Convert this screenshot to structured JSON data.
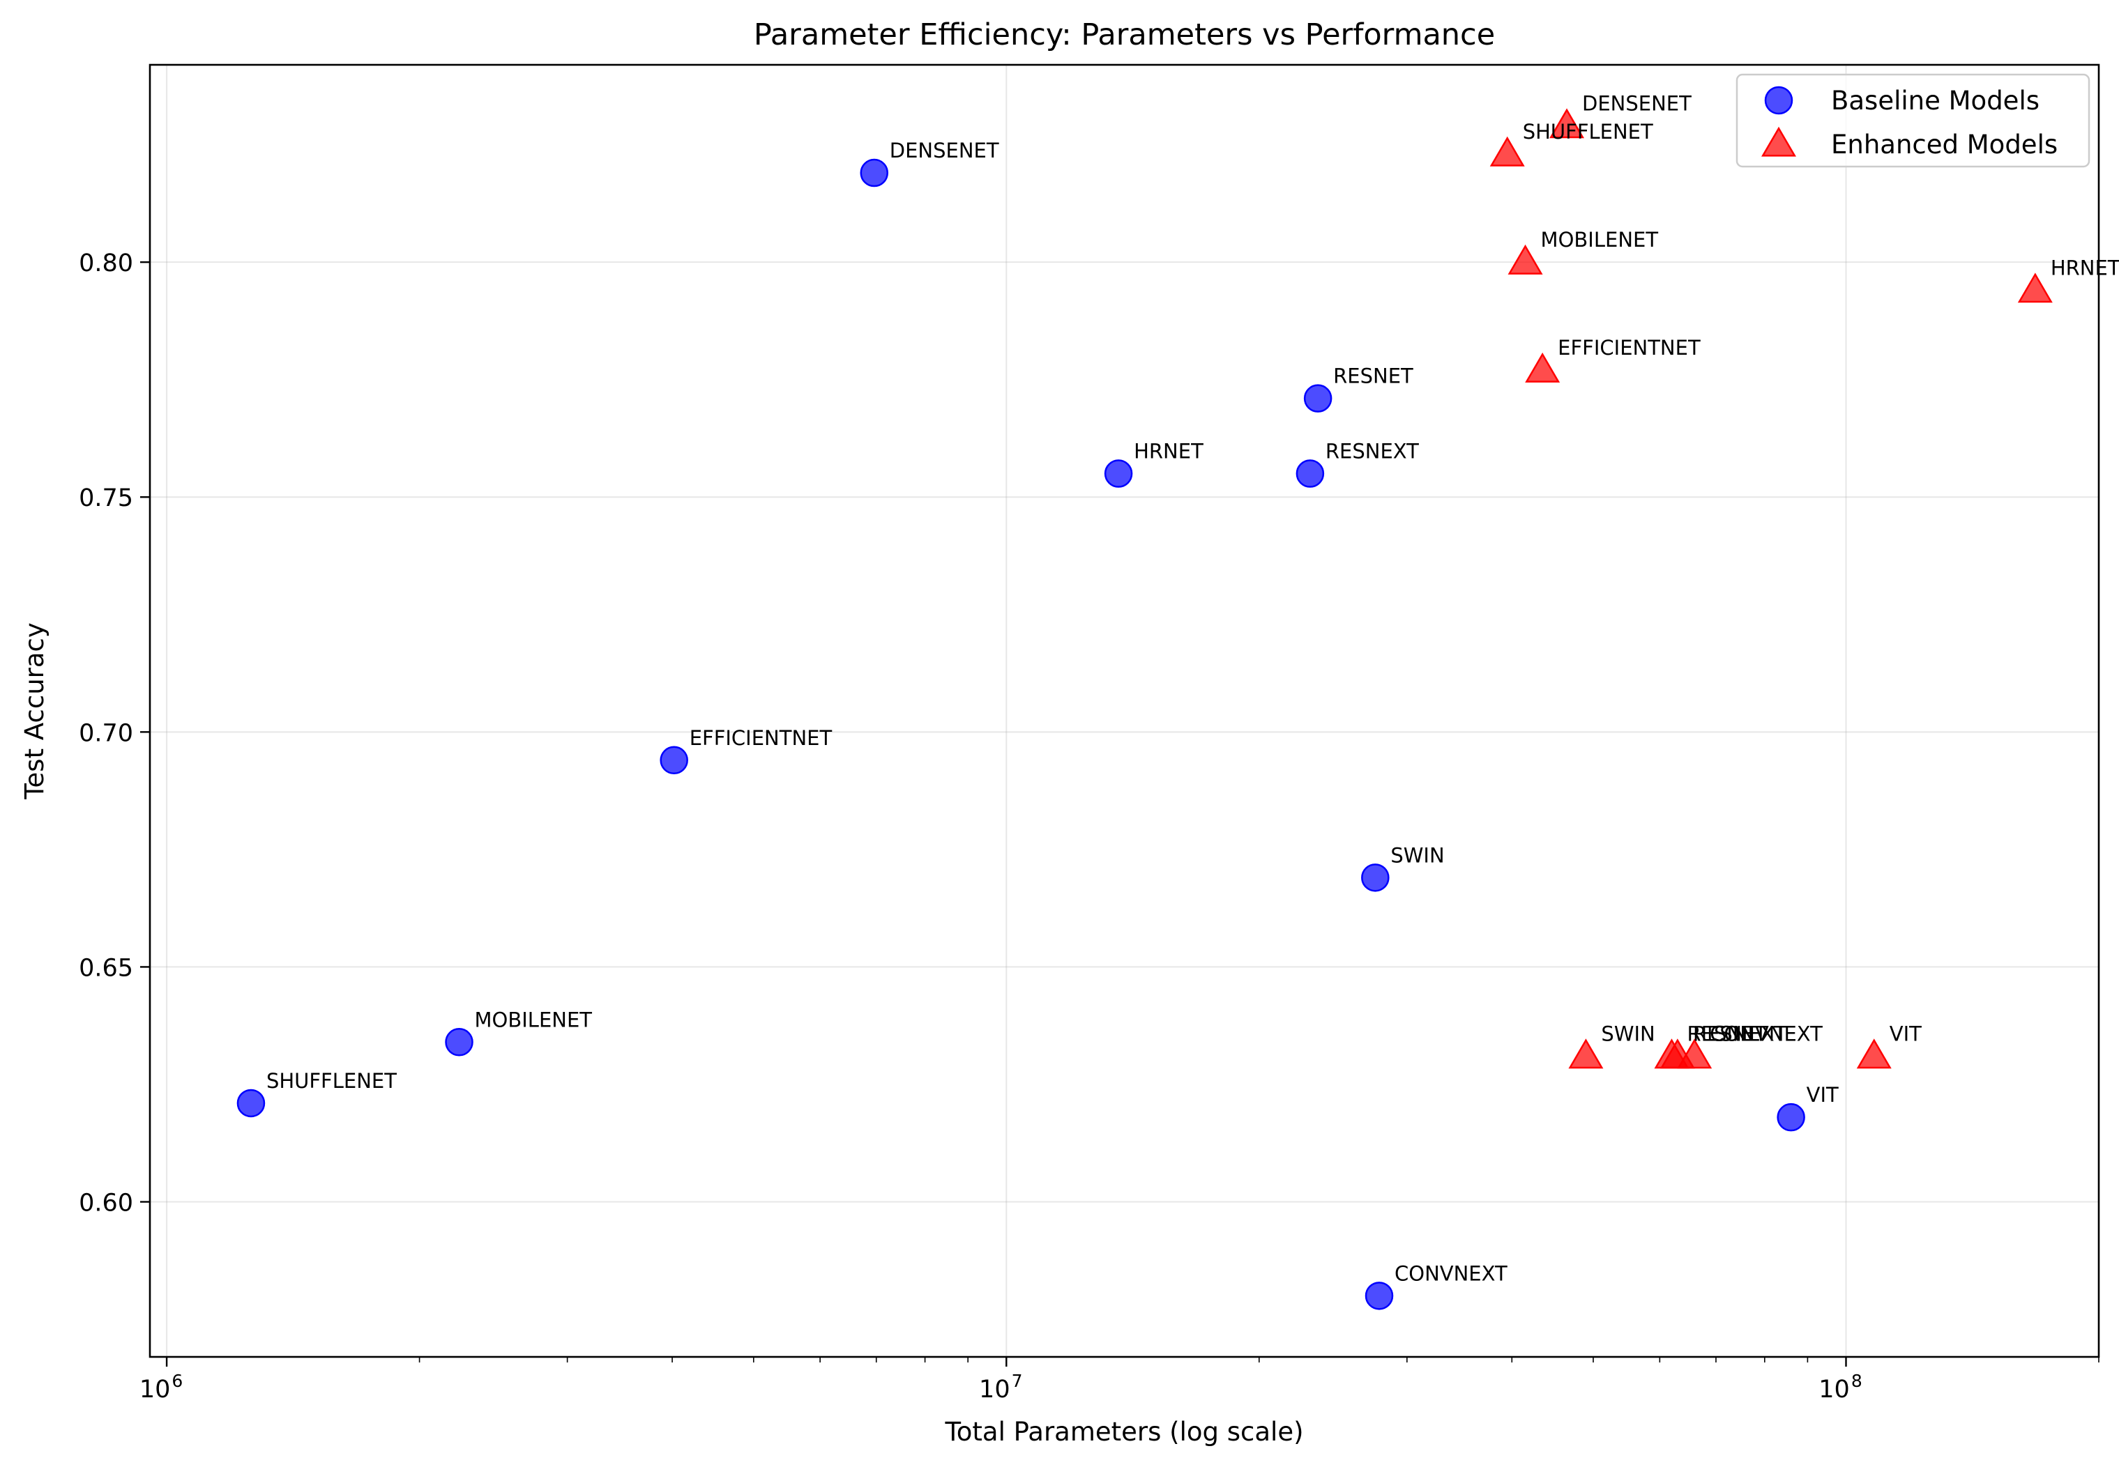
{
  "chart_data": {
    "type": "scatter",
    "title": "Parameter Efficiency: Parameters vs Performance",
    "xlabel": "Total Parameters (log scale)",
    "ylabel": "Test Accuracy",
    "xscale": "log",
    "xlim": [
      955000,
      200000000
    ],
    "ylim": [
      0.567,
      0.842
    ],
    "grid": true,
    "legend_position": "top-right",
    "x_major_ticks": [
      {
        "value": 1000000,
        "base": "10",
        "exp": "6"
      },
      {
        "value": 10000000,
        "base": "10",
        "exp": "7"
      },
      {
        "value": 100000000,
        "base": "10",
        "exp": "8"
      }
    ],
    "y_ticks": [
      {
        "value": 0.6,
        "label": "0.60"
      },
      {
        "value": 0.65,
        "label": "0.65"
      },
      {
        "value": 0.7,
        "label": "0.70"
      },
      {
        "value": 0.75,
        "label": "0.75"
      },
      {
        "value": 0.8,
        "label": "0.80"
      }
    ],
    "series": [
      {
        "name": "Baseline Models",
        "marker": "circle",
        "color": "#0000ff",
        "points": [
          {
            "label": "SHUFFLENET",
            "x": 1260000,
            "y": 0.621
          },
          {
            "label": "MOBILENET",
            "x": 2230000,
            "y": 0.634
          },
          {
            "label": "EFFICIENTNET",
            "x": 4020000,
            "y": 0.694
          },
          {
            "label": "DENSENET",
            "x": 6960000,
            "y": 0.819
          },
          {
            "label": "HRNET",
            "x": 13600000,
            "y": 0.755
          },
          {
            "label": "RESNEXT",
            "x": 23000000,
            "y": 0.755
          },
          {
            "label": "RESNET",
            "x": 23500000,
            "y": 0.771
          },
          {
            "label": "SWIN",
            "x": 27500000,
            "y": 0.669
          },
          {
            "label": "CONVNEXT",
            "x": 27800000,
            "y": 0.58
          },
          {
            "label": "VIT",
            "x": 86000000,
            "y": 0.618
          }
        ]
      },
      {
        "name": "Enhanced Models",
        "marker": "triangle",
        "color": "#ff0000",
        "points": [
          {
            "label": "SHUFFLENET",
            "x": 39500000,
            "y": 0.823
          },
          {
            "label": "DENSENET",
            "x": 46500000,
            "y": 0.829
          },
          {
            "label": "MOBILENET",
            "x": 41500000,
            "y": 0.8
          },
          {
            "label": "EFFICIENTNET",
            "x": 43500000,
            "y": 0.777
          },
          {
            "label": "SWIN",
            "x": 49000000,
            "y": 0.631
          },
          {
            "label": "RESNET",
            "x": 62000000,
            "y": 0.631
          },
          {
            "label": "RESNEXT",
            "x": 63000000,
            "y": 0.631
          },
          {
            "label": "CONVNEXT",
            "x": 66000000,
            "y": 0.631
          },
          {
            "label": "VIT",
            "x": 108000000,
            "y": 0.631
          },
          {
            "label": "HRNET",
            "x": 168000000,
            "y": 0.794
          }
        ]
      }
    ]
  }
}
